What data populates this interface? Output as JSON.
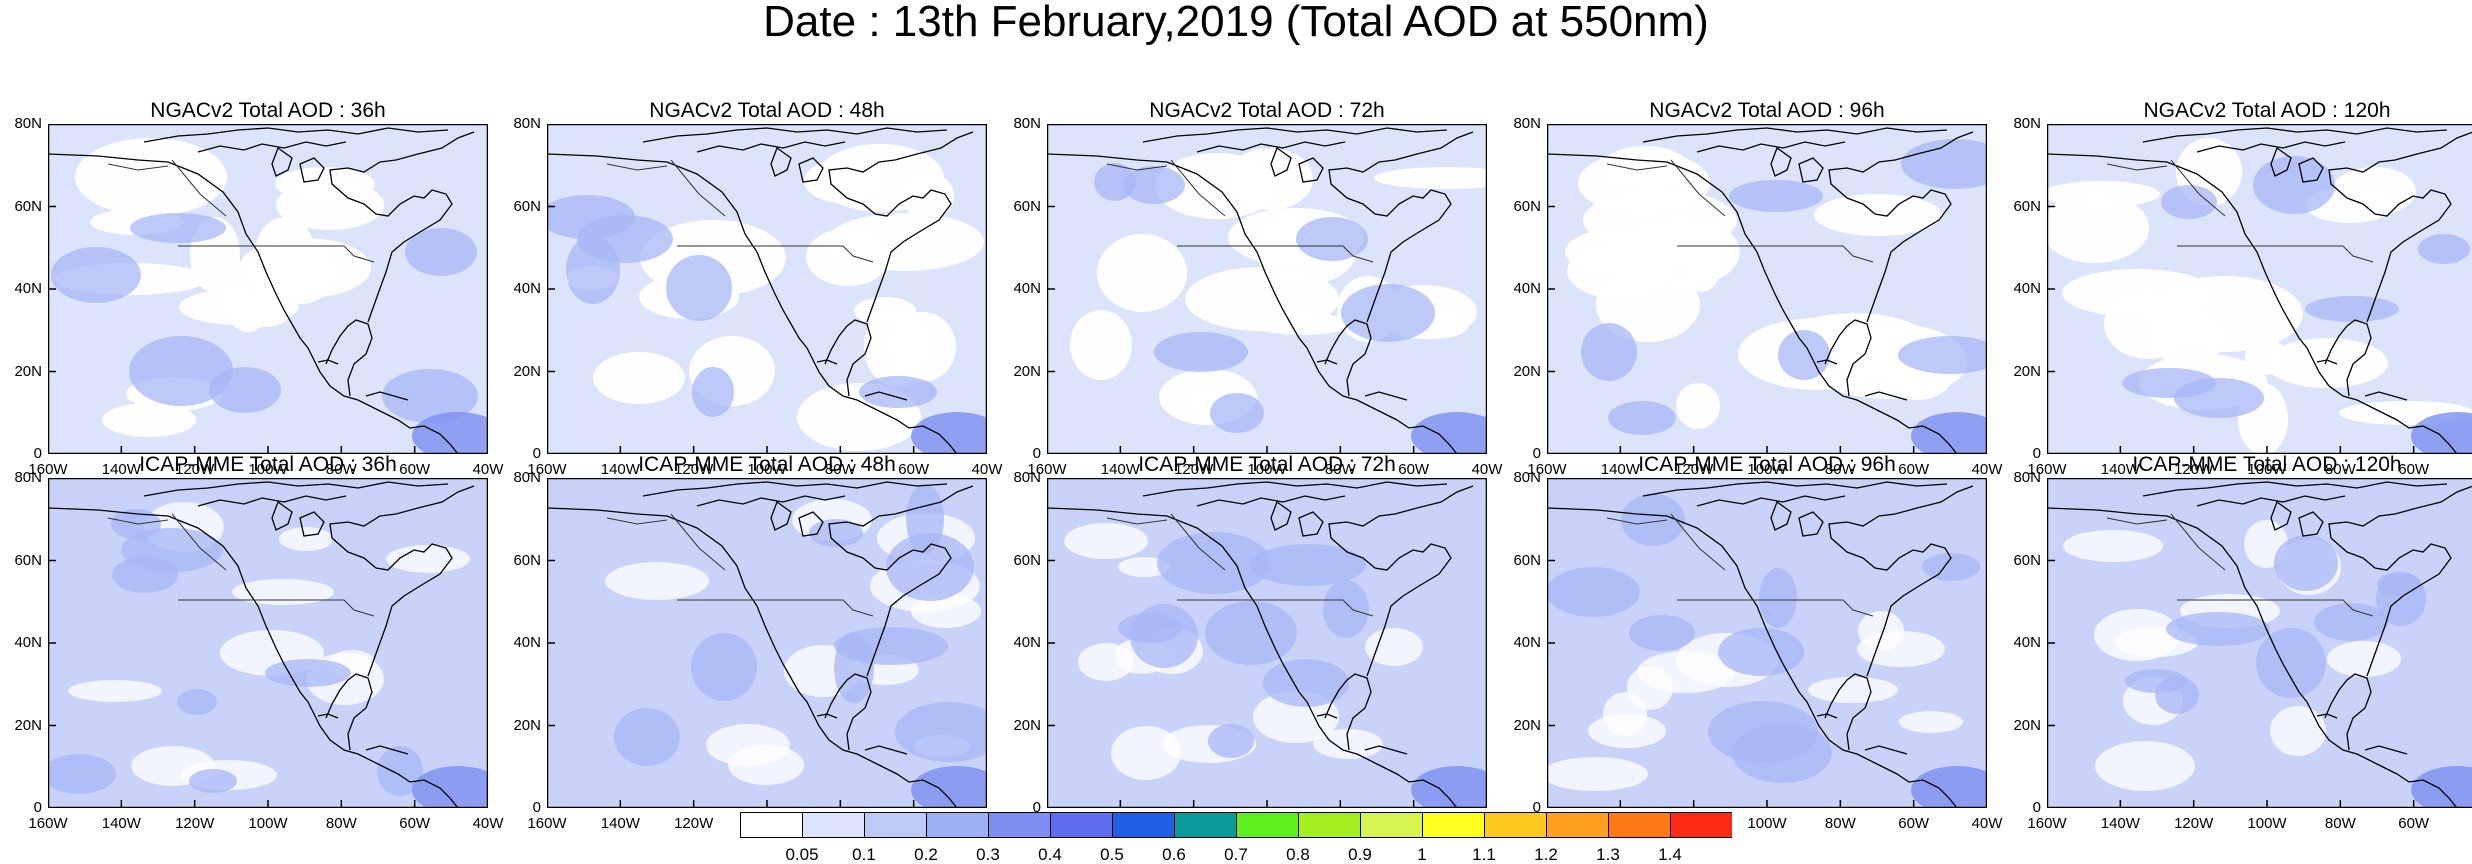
{
  "title": "Date : 13th February,2019 (Total AOD at 550nm)",
  "lat_tick_labels": [
    "80N",
    "60N",
    "40N",
    "20N",
    "0"
  ],
  "lon_tick_labels": [
    "160W",
    "140W",
    "120W",
    "100W",
    "80W",
    "60W",
    "40W"
  ],
  "panels": [
    {
      "title": "NGACv2 Total AOD : 36h",
      "model": "NGACv2",
      "forecast_hour": 36
    },
    {
      "title": "NGACv2 Total AOD : 48h",
      "model": "NGACv2",
      "forecast_hour": 48
    },
    {
      "title": "NGACv2 Total AOD : 72h",
      "model": "NGACv2",
      "forecast_hour": 72
    },
    {
      "title": "NGACv2 Total AOD : 96h",
      "model": "NGACv2",
      "forecast_hour": 96
    },
    {
      "title": "NGACv2 Total AOD : 120h",
      "model": "NGACv2",
      "forecast_hour": 120
    },
    {
      "title": "ICAP-MME Total AOD : 36h",
      "model": "ICAP-MME",
      "forecast_hour": 36
    },
    {
      "title": "ICAP-MME Total AOD : 48h",
      "model": "ICAP-MME",
      "forecast_hour": 48
    },
    {
      "title": "ICAP-MME Total AOD : 72h",
      "model": "ICAP-MME",
      "forecast_hour": 72
    },
    {
      "title": "ICAP-MME Total AOD : 96h",
      "model": "ICAP-MME",
      "forecast_hour": 96
    },
    {
      "title": "ICAP-MME Total AOD : 120h",
      "model": "ICAP-MME",
      "forecast_hour": 120
    }
  ],
  "colorbar": {
    "labels": [
      "0.05",
      "0.1",
      "0.2",
      "0.3",
      "0.4",
      "0.5",
      "0.6",
      "0.7",
      "0.8",
      "0.9",
      "1",
      "1.1",
      "1.2",
      "1.3",
      "1.4"
    ],
    "colors": [
      "#ffffff",
      "#dce4fc",
      "#bccaf8",
      "#9db0f5",
      "#7c8ef0",
      "#5e6cf0",
      "#1f5fe6",
      "#0a9a9a",
      "#5ef01e",
      "#a4f01e",
      "#d6f550",
      "#ffff1e",
      "#ffc81e",
      "#ffa01e",
      "#ff7814",
      "#ff2a14"
    ]
  }
}
